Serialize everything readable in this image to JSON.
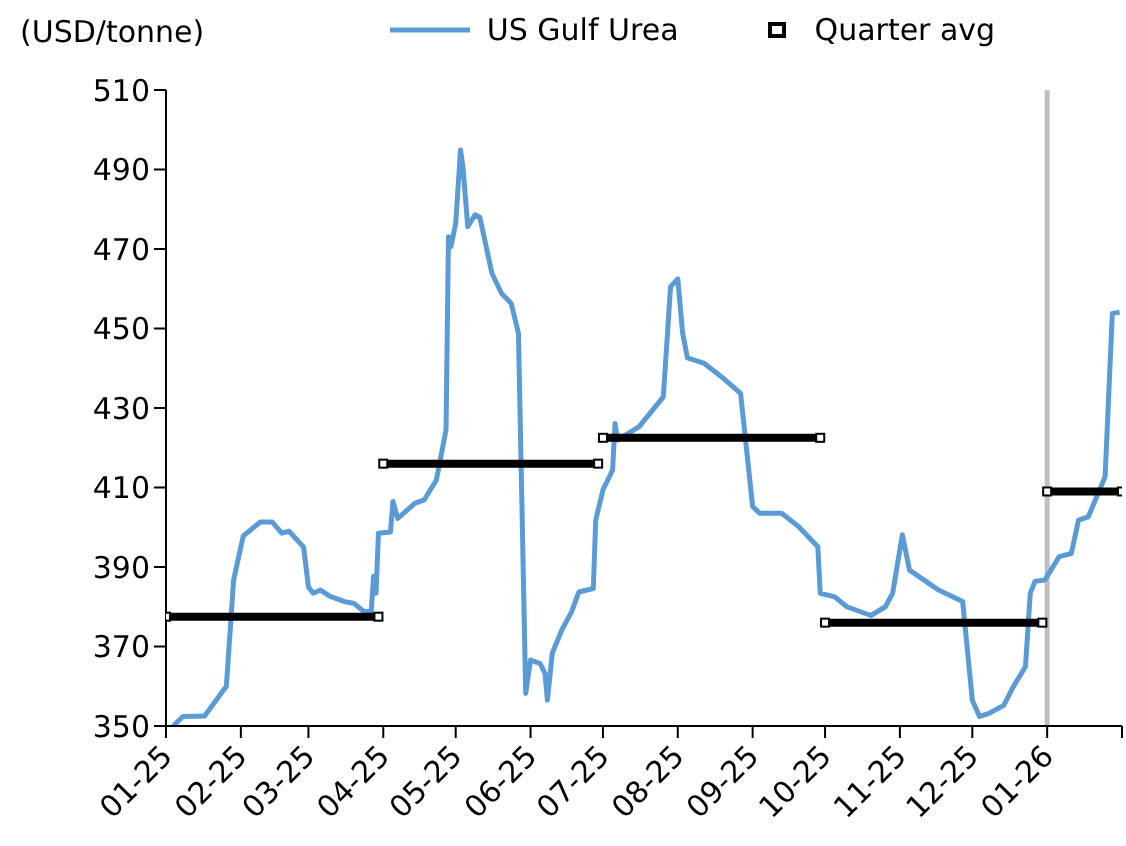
{
  "chart_data": {
    "type": "line",
    "ylabel": "(USD/tonne)",
    "legend": "top",
    "grid": false,
    "xlim": [
      "2025-01-01",
      "2026-02-01"
    ],
    "xticks": [
      {
        "value": "2025-01-01",
        "label": "01-25"
      },
      {
        "value": "2025-02-01",
        "label": "02-25"
      },
      {
        "value": "2025-03-01",
        "label": "03-25"
      },
      {
        "value": "2025-04-01",
        "label": "04-25"
      },
      {
        "value": "2025-05-01",
        "label": "05-25"
      },
      {
        "value": "2025-06-01",
        "label": "06-25"
      },
      {
        "value": "2025-07-01",
        "label": "07-25"
      },
      {
        "value": "2025-08-01",
        "label": "08-25"
      },
      {
        "value": "2025-09-01",
        "label": "09-25"
      },
      {
        "value": "2025-10-01",
        "label": "10-25"
      },
      {
        "value": "2025-11-01",
        "label": "11-25"
      },
      {
        "value": "2025-12-01",
        "label": "12-25"
      },
      {
        "value": "2026-01-01",
        "label": "01-26"
      },
      {
        "value": "2026-02-01",
        "label": null
      }
    ],
    "ylim": [
      350,
      510
    ],
    "yticks": [
      350,
      370,
      390,
      410,
      430,
      450,
      470,
      490,
      510
    ],
    "ref_lines": [
      {
        "axis": "x",
        "value": "2026-01-01",
        "color": "#bfbfbf"
      }
    ],
    "series": [
      {
        "name": "US Gulf Urea",
        "type": "line",
        "color": "#5b9bd5",
        "marker": "none",
        "line_style": "solid",
        "x": [
          "2025-01-04",
          "2025-01-08",
          "2025-01-17",
          "2025-01-26",
          "2025-01-29",
          "2025-02-02",
          "2025-02-09",
          "2025-02-14",
          "2025-02-18",
          "2025-02-21",
          "2025-02-27",
          "2025-03-01",
          "2025-03-03",
          "2025-03-06",
          "2025-03-10",
          "2025-03-16",
          "2025-03-20",
          "2025-03-24",
          "2025-03-27",
          "2025-03-28",
          "2025-03-29",
          "2025-03-30",
          "2025-04-04",
          "2025-04-05",
          "2025-04-07",
          "2025-04-14",
          "2025-04-18",
          "2025-04-23",
          "2025-04-27",
          "2025-04-28",
          "2025-04-29",
          "2025-05-01",
          "2025-05-03",
          "2025-05-04",
          "2025-05-06",
          "2025-05-09",
          "2025-05-11",
          "2025-05-16",
          "2025-05-20",
          "2025-05-24",
          "2025-05-27",
          "2025-05-30",
          "2025-06-01",
          "2025-06-05",
          "2025-06-07",
          "2025-06-08",
          "2025-06-10",
          "2025-06-14",
          "2025-06-18",
          "2025-06-21",
          "2025-06-27",
          "2025-06-28",
          "2025-07-01",
          "2025-07-05",
          "2025-07-06",
          "2025-07-07",
          "2025-07-16",
          "2025-07-26",
          "2025-07-29",
          "2025-08-01",
          "2025-08-03",
          "2025-08-05",
          "2025-08-12",
          "2025-08-20",
          "2025-08-27",
          "2025-09-01",
          "2025-09-04",
          "2025-09-13",
          "2025-09-20",
          "2025-09-28",
          "2025-09-29",
          "2025-10-05",
          "2025-10-10",
          "2025-10-20",
          "2025-10-26",
          "2025-10-29",
          "2025-11-02",
          "2025-11-05",
          "2025-11-11",
          "2025-11-17",
          "2025-11-27",
          "2025-12-01",
          "2025-12-04",
          "2025-12-08",
          "2025-12-14",
          "2025-12-18",
          "2025-12-23",
          "2025-12-25",
          "2025-12-27",
          "2025-12-31",
          "2026-01-06",
          "2026-01-11",
          "2026-01-14",
          "2026-01-18",
          "2026-01-21",
          "2026-01-25",
          "2026-01-28",
          "2026-01-31"
        ],
        "values": [
          350,
          352.4,
          352.5,
          360,
          386.7,
          397.8,
          401.3,
          401.3,
          398.5,
          399,
          395,
          385,
          383.4,
          384.2,
          382.6,
          381.3,
          380.8,
          378.8,
          378.8,
          387.7,
          383.4,
          398.5,
          398.8,
          406.5,
          402.2,
          406,
          406.9,
          411.9,
          424.5,
          473.1,
          470.6,
          476.4,
          494.9,
          490.7,
          475.6,
          478.6,
          478,
          463.9,
          458.8,
          456.3,
          448.8,
          358.2,
          366.6,
          365.7,
          363.2,
          356.5,
          368.3,
          374.2,
          378.7,
          383.7,
          384.6,
          401.8,
          409.4,
          414.4,
          426.1,
          421.9,
          425.3,
          432.8,
          460.5,
          462.5,
          448.8,
          442.6,
          441.2,
          437.4,
          433.7,
          405.2,
          403.5,
          403.5,
          400.2,
          395.1,
          383.4,
          382.5,
          380,
          377.8,
          380,
          383.4,
          398.1,
          389.2,
          386.7,
          384.2,
          381.3,
          356.5,
          352.4,
          353.2,
          355.2,
          359.9,
          364.9,
          383.4,
          386.4,
          386.7,
          392.6,
          393.4,
          401.8,
          402.6,
          406.9,
          412.7,
          453.8,
          454.1
        ]
      },
      {
        "name": "Quarter avg",
        "type": "line",
        "color": "#000000",
        "marker": "square",
        "line_style": "solid",
        "x": [
          "2025-01-01",
          "2025-03-30",
          "2025-03-31",
          "2025-04-01",
          "2025-06-29",
          "2025-06-30",
          "2025-07-01",
          "2025-09-29",
          "2025-09-30",
          "2025-10-01",
          "2025-12-30",
          "2025-12-31",
          "2026-01-01",
          "2026-02-01"
        ],
        "values": [
          377.5,
          377.5,
          null,
          416,
          416,
          null,
          422.5,
          422.5,
          null,
          376,
          376,
          null,
          409,
          409
        ]
      }
    ]
  }
}
